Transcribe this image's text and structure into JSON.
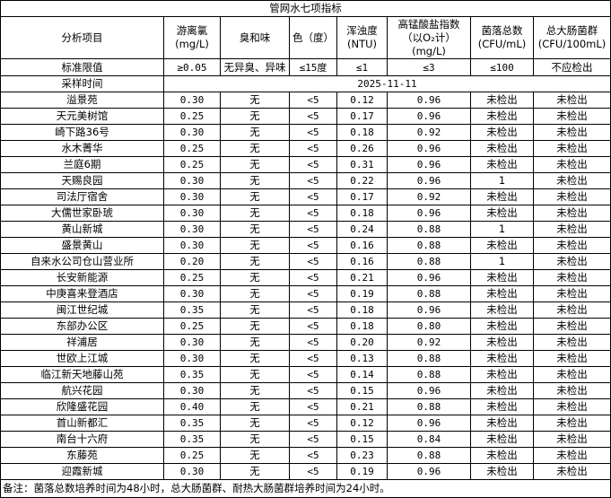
{
  "title": "管网水七项指标",
  "headers": [
    "分析项目",
    "游离氯\n(mg/L)",
    "臭和味",
    "色（度）",
    "浑浊度\n(NTU)",
    "高锰酸盐指数\n（以O₂计）\n(mg/L)",
    "菌落总数\n(CFU/mL)",
    "总大肠菌群\n(CFU/100mL)"
  ],
  "standard": [
    "标准限值",
    "≥0.05",
    "无异臭、异味",
    "≤15度",
    "≤1",
    "≤3",
    "≤100",
    "不应检出"
  ],
  "sampling": {
    "label": "采样时间",
    "date": "2025-11-11"
  },
  "rows": [
    [
      "溢景苑",
      "0.30",
      "无",
      "<5",
      "0.12",
      "0.96",
      "未检出",
      "未检出"
    ],
    [
      "天元美树馆",
      "0.25",
      "无",
      "<5",
      "0.17",
      "0.96",
      "未检出",
      "未检出"
    ],
    [
      "崎下路36号",
      "0.30",
      "无",
      "<5",
      "0.18",
      "0.92",
      "未检出",
      "未检出"
    ],
    [
      "水木菁华",
      "0.25",
      "无",
      "<5",
      "0.26",
      "0.96",
      "未检出",
      "未检出"
    ],
    [
      "兰庭6期",
      "0.25",
      "无",
      "<5",
      "0.31",
      "0.96",
      "未检出",
      "未检出"
    ],
    [
      "天赐良园",
      "0.30",
      "无",
      "<5",
      "0.22",
      "0.96",
      "1",
      "未检出"
    ],
    [
      "司法厅宿舍",
      "0.30",
      "无",
      "<5",
      "0.17",
      "0.92",
      "未检出",
      "未检出"
    ],
    [
      "大儒世家卧琥",
      "0.30",
      "无",
      "<5",
      "0.18",
      "0.96",
      "未检出",
      "未检出"
    ],
    [
      "黄山新城",
      "0.30",
      "无",
      "<5",
      "0.24",
      "0.88",
      "1",
      "未检出"
    ],
    [
      "盛景黄山",
      "0.30",
      "无",
      "<5",
      "0.16",
      "0.88",
      "未检出",
      "未检出"
    ],
    [
      "自来水公司仓山营业所",
      "0.20",
      "无",
      "<5",
      "0.16",
      "0.88",
      "1",
      "未检出"
    ],
    [
      "长安新能源",
      "0.25",
      "无",
      "<5",
      "0.21",
      "0.96",
      "未检出",
      "未检出"
    ],
    [
      "中庚喜来登酒店",
      "0.30",
      "无",
      "<5",
      "0.19",
      "0.88",
      "未检出",
      "未检出"
    ],
    [
      "闽江世纪城",
      "0.35",
      "无",
      "<5",
      "0.18",
      "0.96",
      "未检出",
      "未检出"
    ],
    [
      "东部办公区",
      "0.25",
      "无",
      "<5",
      "0.18",
      "0.80",
      "未检出",
      "未检出"
    ],
    [
      "祥浦居",
      "0.30",
      "无",
      "<5",
      "0.20",
      "0.92",
      "未检出",
      "未检出"
    ],
    [
      "世欧上江城",
      "0.30",
      "无",
      "<5",
      "0.13",
      "0.88",
      "未检出",
      "未检出"
    ],
    [
      "临江新天地藤山苑",
      "0.35",
      "无",
      "<5",
      "0.14",
      "0.88",
      "未检出",
      "未检出"
    ],
    [
      "航兴花园",
      "0.30",
      "无",
      "<5",
      "0.15",
      "0.96",
      "未检出",
      "未检出"
    ],
    [
      "欣隆盛花园",
      "0.40",
      "无",
      "<5",
      "0.21",
      "0.88",
      "未检出",
      "未检出"
    ],
    [
      "首山新都汇",
      "0.35",
      "无",
      "<5",
      "0.12",
      "0.96",
      "未检出",
      "未检出"
    ],
    [
      "南台十六府",
      "0.35",
      "无",
      "<5",
      "0.15",
      "0.84",
      "未检出",
      "未检出"
    ],
    [
      "东藤苑",
      "0.25",
      "无",
      "<5",
      "0.23",
      "0.88",
      "未检出",
      "未检出"
    ],
    [
      "迎霞新城",
      "0.30",
      "无",
      "<5",
      "0.19",
      "0.96",
      "未检出",
      "未检出"
    ]
  ],
  "note": "备注：菌落总数培养时间为48小时，总大肠菌群、耐热大肠菌群培养时间为24小时。"
}
